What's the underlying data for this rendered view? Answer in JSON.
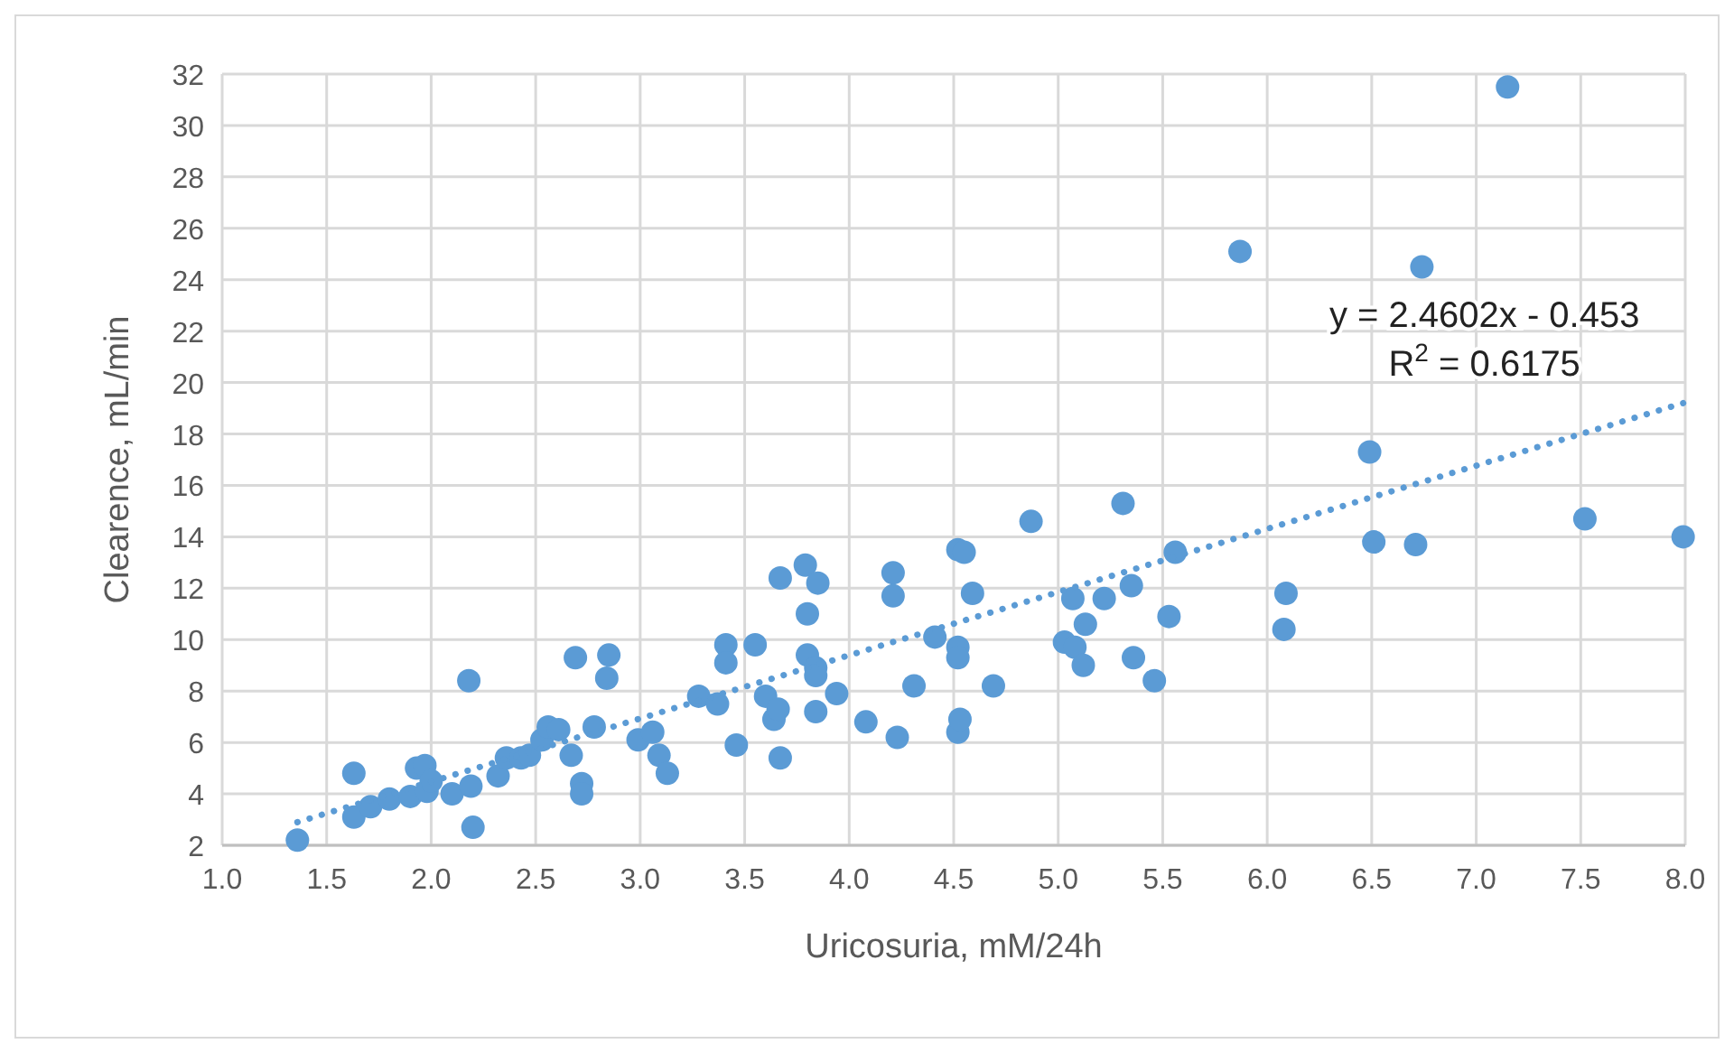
{
  "chart_data": {
    "type": "scatter",
    "xlabel": "Uricosuria, mM/24h",
    "ylabel": "Clearence, mL/min",
    "xlim": [
      1,
      8
    ],
    "ylim": [
      2,
      32
    ],
    "xticks": [
      {
        "value": 1,
        "label": "1.0"
      },
      {
        "value": 1.5,
        "label": "1.5"
      },
      {
        "value": 2,
        "label": "2.0"
      },
      {
        "value": 2.5,
        "label": "2.5"
      },
      {
        "value": 3,
        "label": "3.0"
      },
      {
        "value": 3.5,
        "label": "3.5"
      },
      {
        "value": 4,
        "label": "4.0"
      },
      {
        "value": 4.5,
        "label": "4.5"
      },
      {
        "value": 5,
        "label": "5.0"
      },
      {
        "value": 5.5,
        "label": "5.5"
      },
      {
        "value": 6,
        "label": "6.0"
      },
      {
        "value": 6.5,
        "label": "6.5"
      },
      {
        "value": 7,
        "label": "7.0"
      },
      {
        "value": 7.5,
        "label": "7.5"
      },
      {
        "value": 8,
        "label": "8.0"
      }
    ],
    "yticks": [
      2,
      4,
      6,
      8,
      10,
      12,
      14,
      16,
      18,
      20,
      22,
      24,
      26,
      28,
      30,
      32
    ],
    "grid": true,
    "series": [
      {
        "type": "scatter",
        "color": "#5b9bd5",
        "marker": "circle",
        "x": [
          1.36,
          1.63,
          1.63,
          1.71,
          1.8,
          1.9,
          1.93,
          1.97,
          1.98,
          2.0,
          2.1,
          2.19,
          2.18,
          2.2,
          2.32,
          2.36,
          2.43,
          2.47,
          2.53,
          2.56,
          2.61,
          2.67,
          2.69,
          2.72,
          2.72,
          2.78,
          2.84,
          2.85,
          2.99,
          3.06,
          3.09,
          3.13,
          3.28,
          3.37,
          3.41,
          3.41,
          3.46,
          3.55,
          3.6,
          3.64,
          3.66,
          3.67,
          3.67,
          3.79,
          3.8,
          3.8,
          3.84,
          3.84,
          3.84,
          3.85,
          3.94,
          4.08,
          4.21,
          4.21,
          4.23,
          4.31,
          4.41,
          4.52,
          4.52,
          4.52,
          4.52,
          4.53,
          4.55,
          4.59,
          4.69,
          4.87,
          5.03,
          5.07,
          5.08,
          5.12,
          5.13,
          5.22,
          5.31,
          5.35,
          5.36,
          5.46,
          5.53,
          5.56,
          5.87,
          6.08,
          6.09,
          6.49,
          6.51,
          6.74,
          6.71,
          7.15,
          7.52,
          7.99
        ],
        "values": [
          2.2,
          3.1,
          4.8,
          3.5,
          3.8,
          3.9,
          5.0,
          5.1,
          4.1,
          4.5,
          4.0,
          4.3,
          8.4,
          2.7,
          4.7,
          5.4,
          5.4,
          5.5,
          6.1,
          6.6,
          6.5,
          5.5,
          9.3,
          4.4,
          4.0,
          6.6,
          8.5,
          9.4,
          6.1,
          6.4,
          5.5,
          4.8,
          7.8,
          7.5,
          9.8,
          9.1,
          5.9,
          9.8,
          7.8,
          6.9,
          7.3,
          12.4,
          5.4,
          12.9,
          11.0,
          9.4,
          7.2,
          8.9,
          8.6,
          12.2,
          7.9,
          6.8,
          12.6,
          11.7,
          6.2,
          8.2,
          10.1,
          13.5,
          9.7,
          9.3,
          6.4,
          6.9,
          13.4,
          11.8,
          8.2,
          14.6,
          9.9,
          11.6,
          9.7,
          9.0,
          10.6,
          11.6,
          15.3,
          12.1,
          9.3,
          8.4,
          10.9,
          13.4,
          25.1,
          10.4,
          11.8,
          17.3,
          13.8,
          24.5,
          13.7,
          31.5,
          14.7,
          14.0
        ]
      },
      {
        "type": "line",
        "color": "#5b9bd5",
        "line_style": "dotted",
        "x": [
          1.36,
          7.99
        ],
        "values": [
          2.9,
          19.2
        ]
      }
    ],
    "annotations": [
      "y = 2.4602x - 0.453",
      "R$^{2}$ = 0.6175"
    ]
  }
}
